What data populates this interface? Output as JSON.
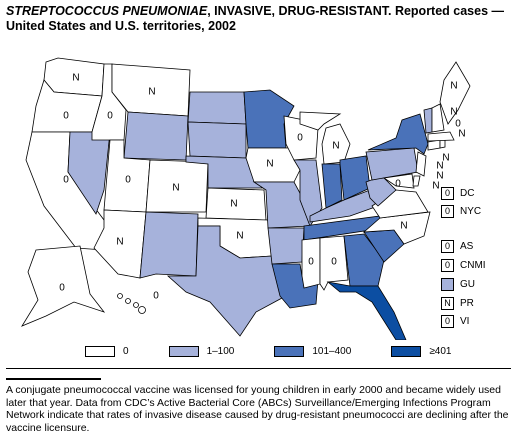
{
  "title": {
    "italic": "STREPTOCOCCUS PNEUMONIAE",
    "rest": ", INVASIVE, DRUG-RESISTANT. Reported cases — United States and U.S. territories, 2002"
  },
  "colors": {
    "zero": "#ffffff",
    "low": "#a6b2db",
    "mid": "#4a72b9",
    "high": "#0c4ea2"
  },
  "legend": [
    {
      "label": "0",
      "color": "#ffffff"
    },
    {
      "label": "1–100",
      "color": "#a6b2db"
    },
    {
      "label": "101–400",
      "color": "#4a72b9"
    },
    {
      "label": "≥401",
      "color": "#0c4ea2"
    }
  ],
  "map_labels": {
    "wa": "N",
    "or": "0",
    "ca": "0",
    "id": "0",
    "nv": "",
    "mt": "N",
    "wy": "",
    "ut": "0",
    "az": "N",
    "co": "N",
    "nm": "",
    "nd": "",
    "sd": "",
    "ne": "",
    "ks": "N",
    "ok": "N",
    "tx": "",
    "mn": "",
    "ia": "N",
    "mo": "",
    "ar": "",
    "la": "",
    "wi": "0",
    "il": "",
    "mi": "N",
    "in": "",
    "oh": "",
    "ky": "",
    "tn": "",
    "ms": "0",
    "al": "0",
    "ga": "",
    "fl": "",
    "sc": "",
    "nc": "N",
    "va": "",
    "wv": "",
    "pa": "",
    "ny": "",
    "md": "0",
    "ak": "0",
    "hi": "0",
    "me": "N",
    "vt": "0",
    "nh": "N",
    "ma": "N",
    "ri": "N",
    "ct": "N",
    "nj": "N",
    "de": "N"
  },
  "insets": [
    {
      "value": "0",
      "label": "DC"
    },
    {
      "value": "0",
      "label": "NYC"
    },
    {
      "value": "0",
      "label": "AS"
    },
    {
      "value": "0",
      "label": "CNMI"
    },
    {
      "value": "",
      "label": "GU",
      "color": "#a6b2db"
    },
    {
      "value": "N",
      "label": "PR"
    },
    {
      "value": "0",
      "label": "VI"
    }
  ],
  "footnote": "A conjugate pneumococcal vaccine was licensed for young children in early 2000 and became widely used later that year.  Data from CDC’s Active Bacterial Core (ABCs) Surveillance/Emerging Infections Program Network indicate that rates of invasive disease caused by drug-resistant pneumococci are declining after the vaccine licensure."
}
